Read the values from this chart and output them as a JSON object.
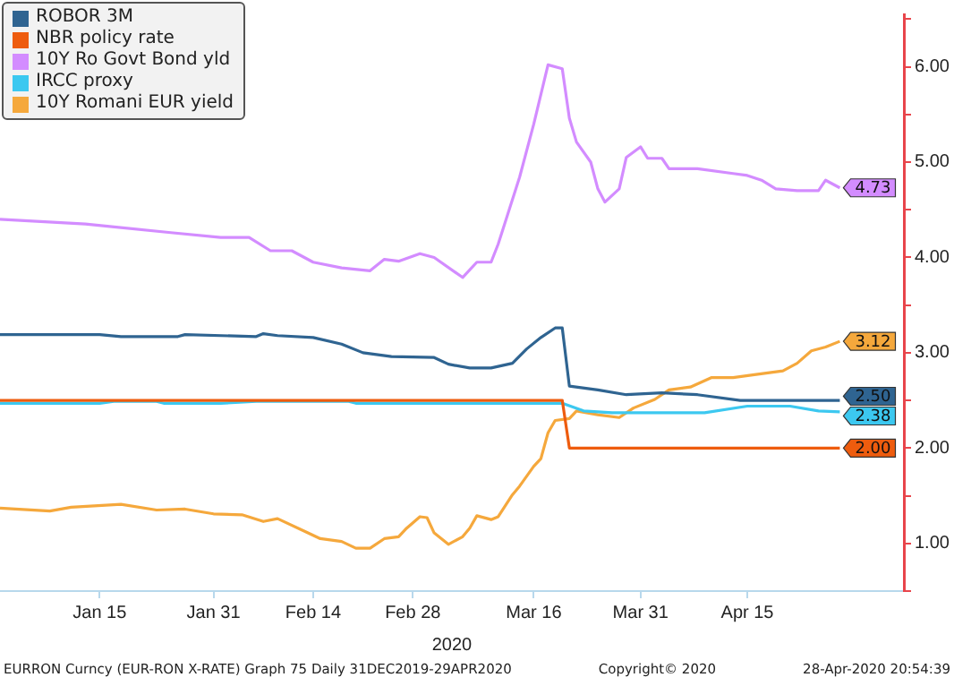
{
  "chart_data": {
    "type": "line",
    "xlabel": "2020",
    "xlim": [
      "2020-01-01",
      "2020-05-07"
    ],
    "xticks": [
      {
        "value": "2020-01-15",
        "label": "Jan 15"
      },
      {
        "value": "2020-01-31",
        "label": "Jan 31"
      },
      {
        "value": "2020-02-14",
        "label": "Feb 14"
      },
      {
        "value": "2020-02-28",
        "label": "Feb 28"
      },
      {
        "value": "2020-03-16",
        "label": "Mar 16"
      },
      {
        "value": "2020-03-31",
        "label": "Mar 31"
      },
      {
        "value": "2020-04-15",
        "label": "Apr 15"
      }
    ],
    "ylim": [
      0.5,
      6.55
    ],
    "yticks": [
      {
        "value": 0.5,
        "label": null
      },
      {
        "value": 1,
        "label": "1.00"
      },
      {
        "value": 1.5,
        "label": null
      },
      {
        "value": 2,
        "label": "2.00"
      },
      {
        "value": 2.5,
        "label": null
      },
      {
        "value": 3,
        "label": "3.00"
      },
      {
        "value": 3.5,
        "label": null
      },
      {
        "value": 4,
        "label": "4.00"
      },
      {
        "value": 4.5,
        "label": null
      },
      {
        "value": 5,
        "label": "5.00"
      },
      {
        "value": 5.5,
        "label": null
      },
      {
        "value": 6,
        "label": "6.00"
      },
      {
        "value": 6.5,
        "label": null
      }
    ],
    "grid": false,
    "legend": "top left",
    "marker": "none",
    "line_style": "solid",
    "series": [
      {
        "name": "ROBOR 3M",
        "color": "#2f6491",
        "x": [
          "2020-01-01",
          "2020-01-15",
          "2020-01-18",
          "2020-01-26",
          "2020-01-27",
          "2020-02-06",
          "2020-02-07",
          "2020-02-09",
          "2020-02-14",
          "2020-02-18",
          "2020-02-21",
          "2020-02-25",
          "2020-03-02",
          "2020-03-04",
          "2020-03-07",
          "2020-03-10",
          "2020-03-13",
          "2020-03-15",
          "2020-03-17",
          "2020-03-19",
          "2020-03-20",
          "2020-03-21",
          "2020-03-25",
          "2020-03-29",
          "2020-04-03",
          "2020-04-08",
          "2020-04-14",
          "2020-04-28"
        ],
        "values": [
          3.19,
          3.19,
          3.17,
          3.17,
          3.19,
          3.17,
          3.2,
          3.18,
          3.16,
          3.09,
          3.0,
          2.96,
          2.95,
          2.88,
          2.84,
          2.84,
          2.89,
          3.04,
          3.16,
          3.26,
          3.26,
          2.65,
          2.61,
          2.56,
          2.58,
          2.56,
          2.5,
          2.5
        ],
        "value_labels": [
          null,
          null,
          null,
          null,
          null,
          null,
          null,
          null,
          null,
          null,
          null,
          null,
          null,
          null,
          null,
          null,
          null,
          null,
          null,
          null,
          null,
          null,
          null,
          null,
          null,
          null,
          null,
          "2.50"
        ]
      },
      {
        "name": "NBR policy rate",
        "color": "#ee5c0e",
        "x": [
          "2020-01-01",
          "2020-03-20",
          "2020-03-21",
          "2020-04-28"
        ],
        "values": [
          2.5,
          2.5,
          2.0,
          2.0
        ],
        "value_labels": [
          null,
          null,
          null,
          "2.00"
        ]
      },
      {
        "name": "10Y Ro Govt Bond yld",
        "color": "#d38cff",
        "x": [
          "2020-01-01",
          "2020-01-13",
          "2020-01-25",
          "2020-02-01",
          "2020-02-05",
          "2020-02-08",
          "2020-02-11",
          "2020-02-14",
          "2020-02-18",
          "2020-02-22",
          "2020-02-24",
          "2020-02-26",
          "2020-02-29",
          "2020-03-02",
          "2020-03-06",
          "2020-03-08",
          "2020-03-10",
          "2020-03-11",
          "2020-03-14",
          "2020-03-16",
          "2020-03-18",
          "2020-03-20",
          "2020-03-21",
          "2020-03-22",
          "2020-03-24",
          "2020-03-25",
          "2020-03-26",
          "2020-03-28",
          "2020-03-29",
          "2020-03-31",
          "2020-04-01",
          "2020-04-03",
          "2020-04-04",
          "2020-04-08",
          "2020-04-13",
          "2020-04-15",
          "2020-04-17",
          "2020-04-19",
          "2020-04-22",
          "2020-04-25",
          "2020-04-26",
          "2020-04-28"
        ],
        "values": [
          4.4,
          4.35,
          4.26,
          4.21,
          4.21,
          4.07,
          4.07,
          3.95,
          3.89,
          3.86,
          3.98,
          3.96,
          4.04,
          4.0,
          3.79,
          3.95,
          3.95,
          4.14,
          4.84,
          5.4,
          6.02,
          5.98,
          5.46,
          5.21,
          5.0,
          4.72,
          4.58,
          4.72,
          5.05,
          5.16,
          5.04,
          5.04,
          4.93,
          4.93,
          4.88,
          4.86,
          4.81,
          4.72,
          4.7,
          4.7,
          4.81,
          4.73
        ],
        "value_labels": [
          null,
          null,
          null,
          null,
          null,
          null,
          null,
          null,
          null,
          null,
          null,
          null,
          null,
          null,
          null,
          null,
          null,
          null,
          null,
          null,
          null,
          null,
          null,
          null,
          null,
          null,
          null,
          null,
          null,
          null,
          null,
          null,
          null,
          null,
          null,
          null,
          null,
          null,
          null,
          null,
          null,
          "4.73"
        ]
      },
      {
        "name": "IRCC proxy",
        "color": "#3cc8f0",
        "x": [
          "2020-01-01",
          "2020-01-15",
          "2020-01-17",
          "2020-01-23",
          "2020-01-24",
          "2020-02-01",
          "2020-02-06",
          "2020-02-19",
          "2020-02-20",
          "2020-03-20",
          "2020-03-23",
          "2020-03-27",
          "2020-04-09",
          "2020-04-15",
          "2020-04-21",
          "2020-04-25",
          "2020-04-28"
        ],
        "values": [
          2.47,
          2.47,
          2.49,
          2.49,
          2.47,
          2.47,
          2.49,
          2.49,
          2.47,
          2.47,
          2.39,
          2.37,
          2.37,
          2.44,
          2.44,
          2.39,
          2.38
        ],
        "value_labels": [
          null,
          null,
          null,
          null,
          null,
          null,
          null,
          null,
          null,
          null,
          null,
          null,
          null,
          null,
          null,
          null,
          "2.38"
        ]
      },
      {
        "name": "10Y Romani EUR yield",
        "color": "#f5a83c",
        "x": [
          "2020-01-01",
          "2020-01-08",
          "2020-01-11",
          "2020-01-18",
          "2020-01-23",
          "2020-01-27",
          "2020-01-31",
          "2020-02-04",
          "2020-02-07",
          "2020-02-09",
          "2020-02-13",
          "2020-02-15",
          "2020-02-18",
          "2020-02-20",
          "2020-02-22",
          "2020-02-24",
          "2020-02-26",
          "2020-02-27",
          "2020-02-29",
          "2020-03-01",
          "2020-03-02",
          "2020-03-04",
          "2020-03-06",
          "2020-03-07",
          "2020-03-08",
          "2020-03-10",
          "2020-03-11",
          "2020-03-13",
          "2020-03-14",
          "2020-03-16",
          "2020-03-17",
          "2020-03-18",
          "2020-03-19",
          "2020-03-21",
          "2020-03-22",
          "2020-03-25",
          "2020-03-28",
          "2020-03-30",
          "2020-04-02",
          "2020-04-04",
          "2020-04-07",
          "2020-04-10",
          "2020-04-13",
          "2020-04-16",
          "2020-04-20",
          "2020-04-22",
          "2020-04-24",
          "2020-04-26",
          "2020-04-28"
        ],
        "values": [
          1.37,
          1.34,
          1.38,
          1.41,
          1.35,
          1.36,
          1.31,
          1.3,
          1.23,
          1.26,
          1.12,
          1.05,
          1.02,
          0.95,
          0.95,
          1.05,
          1.07,
          1.15,
          1.28,
          1.27,
          1.11,
          0.99,
          1.07,
          1.16,
          1.29,
          1.25,
          1.28,
          1.51,
          1.6,
          1.81,
          1.89,
          2.16,
          2.29,
          2.31,
          2.39,
          2.35,
          2.32,
          2.42,
          2.51,
          2.61,
          2.64,
          2.74,
          2.74,
          2.77,
          2.81,
          2.89,
          3.02,
          3.06,
          3.12
        ],
        "value_labels": [
          null,
          null,
          null,
          null,
          null,
          null,
          null,
          null,
          null,
          null,
          null,
          null,
          null,
          null,
          null,
          null,
          null,
          null,
          null,
          null,
          null,
          null,
          null,
          null,
          null,
          null,
          null,
          null,
          null,
          null,
          null,
          null,
          null,
          null,
          null,
          null,
          null,
          null,
          null,
          null,
          null,
          null,
          null,
          null,
          null,
          null,
          null,
          null,
          "3.12"
        ]
      }
    ],
    "annotations": [
      "EURRON Curncy (EUR-RON X-RATE) Graph 75  Daily 31DEC2019-29APR2020",
      "Copyright© 2020",
      "28-Apr-2020 20:54:39"
    ]
  }
}
